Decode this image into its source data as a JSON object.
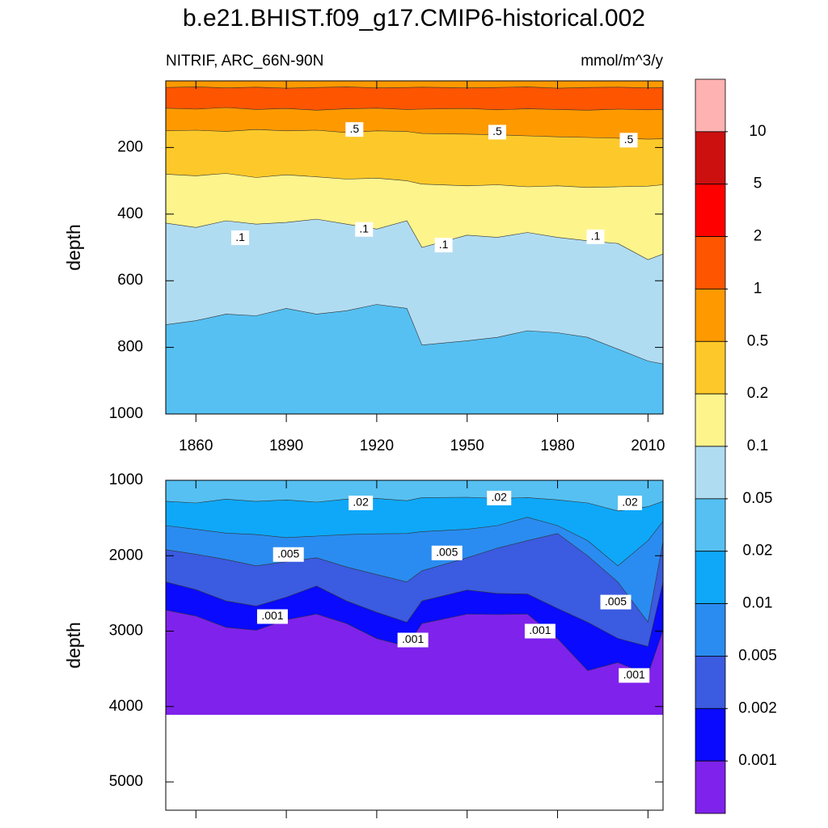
{
  "chart_data": {
    "type": "contour",
    "title": "b.e21.BHIST.f09_g17.CMIP6-historical.002",
    "subtitle": "NITRIF, ARC_66N-90N",
    "units": "mmol/m^3/y",
    "colorbar": {
      "levels": [
        10,
        5,
        2,
        1,
        0.5,
        0.2,
        0.1,
        0.05,
        0.02,
        0.01,
        0.005,
        0.002,
        0.001
      ],
      "colors": [
        "#ffb2b2",
        "#cc1010",
        "#fe0000",
        "#fd5500",
        "#fe9a00",
        "#fdc92a",
        "#fef48c",
        "#b0dcf2",
        "#56c0f2",
        "#0fa8f8",
        "#2a8cf0",
        "#3b5be0",
        "#0a0aff",
        "#7f22ec"
      ]
    },
    "panels": [
      {
        "y_label": "depth",
        "xlim": [
          1850,
          2015
        ],
        "ylim": [
          0,
          1000
        ],
        "xticks": [
          1860,
          1890,
          1920,
          1950,
          1980,
          2010
        ],
        "show_x_tick_labels": true,
        "yticks": [
          200,
          400,
          600,
          800,
          1000
        ],
        "base_color": "#fe9a00",
        "x": [
          1850,
          1860,
          1870,
          1880,
          1890,
          1900,
          1910,
          1920,
          1930,
          1935,
          1950,
          1960,
          1970,
          1980,
          1990,
          2000,
          2010,
          2015
        ],
        "contours": [
          {
            "level": 1,
            "color": "#fd5500",
            "values": [
              20,
              18,
              21,
              19,
              22,
              20,
              18,
              21,
              20,
              19,
              21,
              20,
              18,
              22,
              20,
              19,
              21,
              20
            ]
          },
          {
            "level": 1,
            "color": "#fe9a00",
            "values": [
              82,
              85,
              80,
              86,
              83,
              88,
              84,
              82,
              86,
              85,
              83,
              87,
              84,
              86,
              88,
              85,
              87,
              86
            ]
          },
          {
            "level": 0.5,
            "color": "#fdc92a",
            "values": [
              150,
              148,
              152,
              146,
              150,
              148,
              155,
              150,
              152,
              158,
              160,
              162,
              165,
              168,
              170,
              172,
              175,
              174
            ]
          },
          {
            "level": 0.2,
            "color": "#fef48c",
            "values": [
              280,
              285,
              278,
              290,
              282,
              288,
              295,
              292,
              300,
              310,
              315,
              312,
              318,
              315,
              320,
              318,
              316,
              312
            ]
          },
          {
            "level": 0.1,
            "color": "#b0dcf2",
            "values": [
              427,
              440,
              420,
              430,
              425,
              415,
              430,
              445,
              420,
              500,
              463,
              470,
              455,
              470,
              480,
              488,
              537,
              520
            ]
          },
          {
            "level": 0.05,
            "color": "#56c0f2",
            "values": [
              732,
              720,
              700,
              705,
              683,
              700,
              690,
              671,
              683,
              793,
              780,
              770,
              750,
              756,
              770,
              805,
              841,
              850
            ]
          }
        ],
        "labels": [
          {
            "text": ".5",
            "x": 1912.6,
            "y": 146
          },
          {
            "text": ".5",
            "x": 1960,
            "y": 154
          },
          {
            "text": ".5",
            "x": 2003.6,
            "y": 178
          },
          {
            "text": ".1",
            "x": 1874.7,
            "y": 471
          },
          {
            "text": ".1",
            "x": 1915.8,
            "y": 446
          },
          {
            "text": ".1",
            "x": 1942.2,
            "y": 493
          },
          {
            "text": ".1",
            "x": 1992.6,
            "y": 468
          }
        ]
      },
      {
        "y_label": "depth",
        "xlim": [
          1850,
          2015
        ],
        "ylim": [
          1000,
          5375
        ],
        "xticks": [
          1860,
          1890,
          1920,
          1950,
          1980,
          2010
        ],
        "show_x_tick_labels": false,
        "yticks": [
          1000,
          2000,
          3000,
          4000,
          5000
        ],
        "base_color": "#56c0f2",
        "fill_bottom": 4110,
        "x": [
          1850,
          1860,
          1870,
          1880,
          1890,
          1900,
          1910,
          1920,
          1930,
          1935,
          1950,
          1960,
          1970,
          1980,
          1990,
          2000,
          2010,
          2015
        ],
        "contours": [
          {
            "level": 0.02,
            "color": "#0fa8f8",
            "values": [
              1278,
              1300,
              1250,
              1280,
              1260,
              1290,
              1250,
              1240,
              1270,
              1230,
              1225,
              1240,
              1230,
              1260,
              1300,
              1406,
              1350,
              1278
            ]
          },
          {
            "level": 0.01,
            "color": "#2a8cf0",
            "values": [
              1600,
              1650,
              1700,
              1720,
              1760,
              1740,
              1720,
              1710,
              1706,
              1680,
              1650,
              1600,
              1490,
              1600,
              1800,
              2134,
              1800,
              1545
            ]
          },
          {
            "level": 0.005,
            "color": "#3b5be0",
            "values": [
              1920,
              1980,
              2050,
              2134,
              2080,
              2027,
              2150,
              2250,
              2348,
              2200,
              2027,
              1900,
              1800,
              1706,
              2000,
              2348,
              2882,
              1813
            ]
          },
          {
            "level": 0.002,
            "color": "#0a0aff",
            "values": [
              2348,
              2450,
              2600,
              2668,
              2550,
              2401,
              2600,
              2750,
              2882,
              2600,
              2455,
              2500,
              2508,
              2700,
              2882,
              3096,
              3203,
              2348
            ]
          },
          {
            "level": 0.001,
            "color": "#7f22ec",
            "values": [
              2722,
              2800,
              2950,
              2989,
              2850,
              2775,
              2900,
              3100,
              3203,
              2900,
              2775,
              2780,
              2775,
              3100,
              3524,
              3417,
              3578,
              2989
            ]
          }
        ],
        "labels": [
          {
            "text": ".02",
            "x": 1914.7,
            "y": 1300
          },
          {
            "text": ".02",
            "x": 1960.6,
            "y": 1235
          },
          {
            "text": ".02",
            "x": 2004,
            "y": 1300
          },
          {
            "text": ".005",
            "x": 1890.7,
            "y": 1984
          },
          {
            "text": ".005",
            "x": 1943.3,
            "y": 1963
          },
          {
            "text": ".005",
            "x": 1999.3,
            "y": 2615
          },
          {
            "text": ".001",
            "x": 1885.4,
            "y": 2807
          },
          {
            "text": ".001",
            "x": 1932,
            "y": 3118
          },
          {
            "text": ".001",
            "x": 1974.2,
            "y": 3000
          },
          {
            "text": ".001",
            "x": 2005.4,
            "y": 3588
          }
        ]
      }
    ]
  }
}
